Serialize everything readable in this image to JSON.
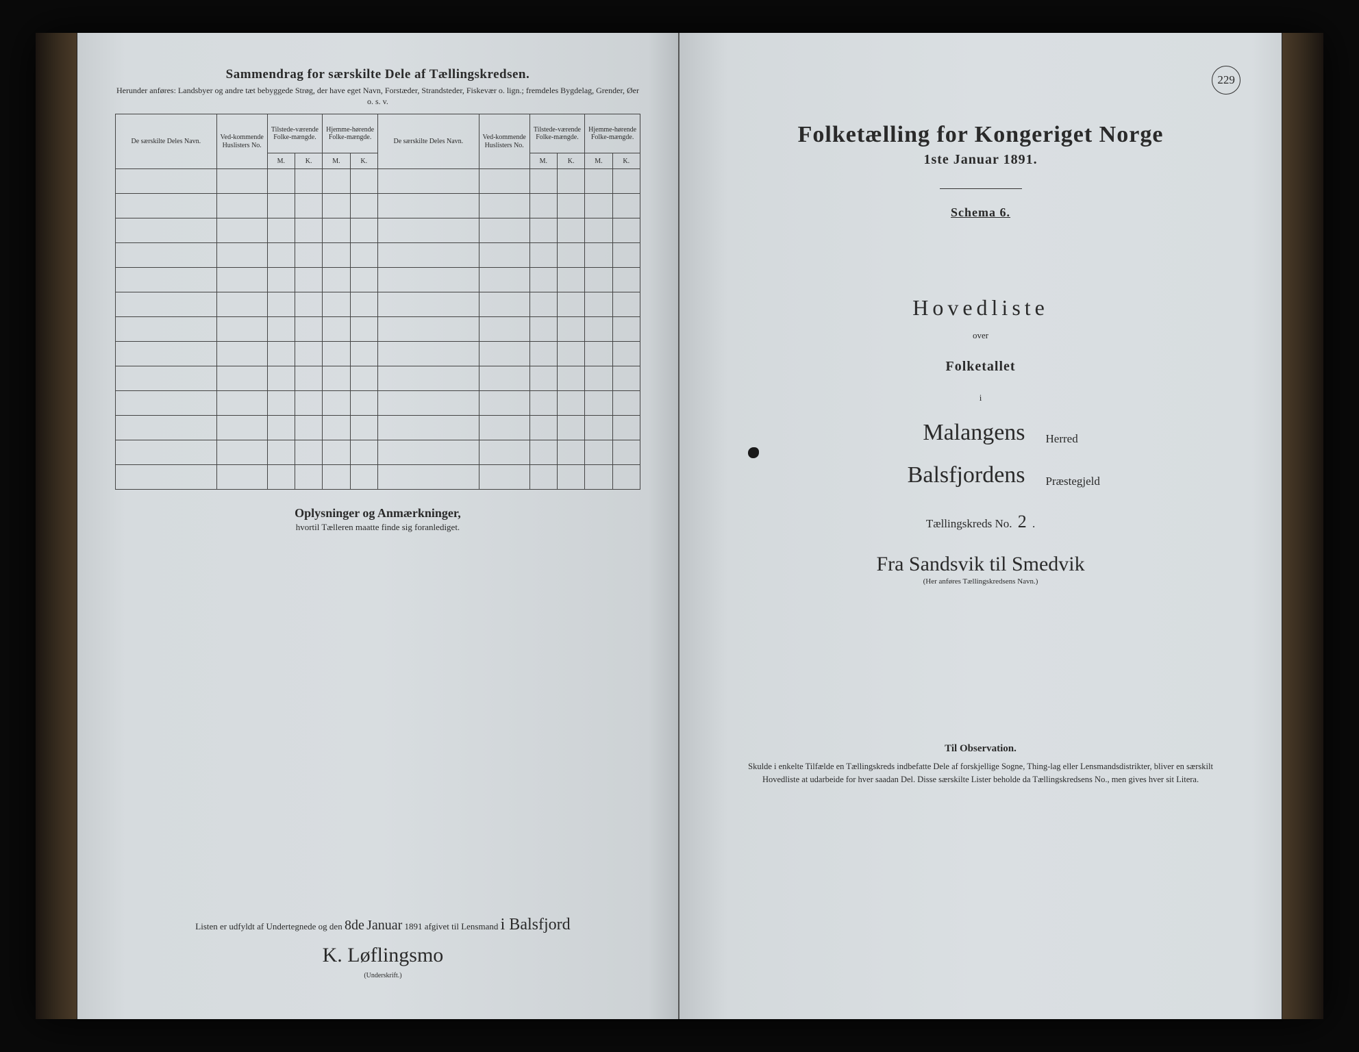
{
  "left": {
    "title": "Sammendrag for særskilte Dele af Tællingskredsen.",
    "subtitle": "Herunder anføres: Landsbyer og andre tæt bebyggede Strøg, der have eget Navn, Forstæder, Strandsteder, Fiskevær o. lign.; fremdeles Bygdelag, Grender, Øer o. s. v.",
    "headers": {
      "navn": "De særskilte Deles Navn.",
      "huslister": "Ved-kommende Huslisters No.",
      "tilstede": "Tilstede-værende Folke-mængde.",
      "hjemme": "Hjemme-hørende Folke-mængde.",
      "m": "M.",
      "k": "K."
    },
    "oplys_title": "Oplysninger og Anmærkninger,",
    "oplys_sub": "hvortil Tælleren maatte finde sig foranlediget.",
    "sig_prefix": "Listen er udfyldt af Undertegnede og den",
    "sig_day": "8de",
    "sig_month": "Januar",
    "sig_year": "1891 afgivet til Lensmand",
    "sig_place": "i Balsfjord",
    "sig_name": "K. Løflingsmo",
    "sig_label": "(Underskrift.)"
  },
  "right": {
    "page_no": "229",
    "title": "Folketælling for Kongeriget Norge",
    "date": "1ste Januar 1891.",
    "schema": "Schema 6.",
    "hoved": "Hovedliste",
    "over": "over",
    "folketallet": "Folketallet",
    "i": "i",
    "herred_value": "Malangens",
    "herred_label": "Herred",
    "praeste_value": "Balsfjordens",
    "praeste_label": "Præstegjeld",
    "kreds_label_pre": "Tællingskreds No.",
    "kreds_no": "2",
    "kreds_dot": ".",
    "kreds_name": "Fra Sandsvik til Smedvik",
    "kreds_name_sub": "(Her anføres Tællingskredsens Navn.)",
    "obs_title": "Til Observation.",
    "obs_body": "Skulde i enkelte Tilfælde en Tællingskreds indbefatte Dele af forskjellige Sogne, Thing-lag eller Lensmandsdistrikter, bliver en særskilt Hovedliste at udarbeide for hver saadan Del. Disse særskilte Lister beholde da Tællingskredsens No., men gives hver sit Litera."
  },
  "colors": {
    "page_bg": "#d8dde0",
    "ink": "#2a2a2a",
    "border": "#444444",
    "frame": "#0a0a0a"
  },
  "blank_rows": 13
}
